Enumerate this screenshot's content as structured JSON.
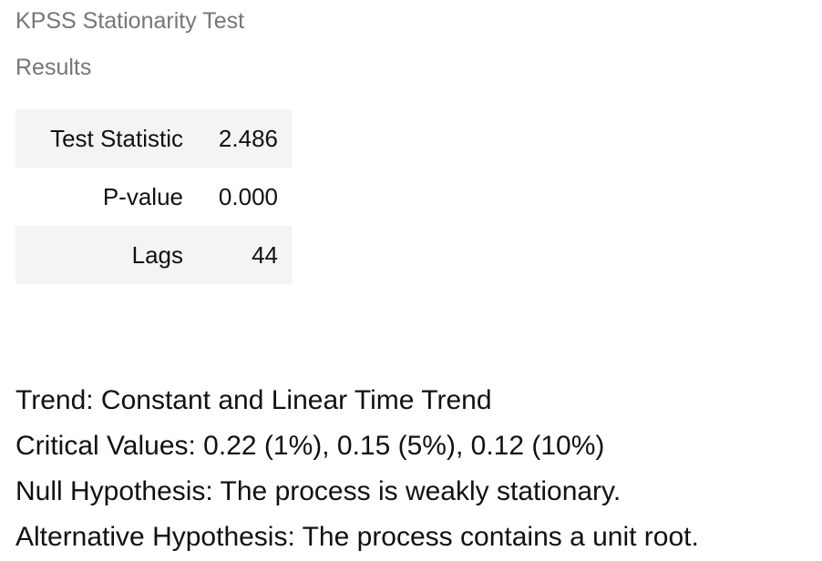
{
  "caption": {
    "title": "KPSS Stationarity Test",
    "subtitle": "Results"
  },
  "results_table": {
    "rows": [
      {
        "label": "Test Statistic",
        "value": "2.486"
      },
      {
        "label": "P-value",
        "value": "0.000"
      },
      {
        "label": "Lags",
        "value": "44"
      }
    ]
  },
  "notes": {
    "trend": "Trend: Constant and Linear Time Trend",
    "critical_values": "Critical Values: 0.22 (1%), 0.15 (5%), 0.12 (10%)",
    "null_hypothesis": "Null Hypothesis: The process is weakly stationary.",
    "alternative_hypothesis": "Alternative Hypothesis: The process contains a unit root."
  }
}
